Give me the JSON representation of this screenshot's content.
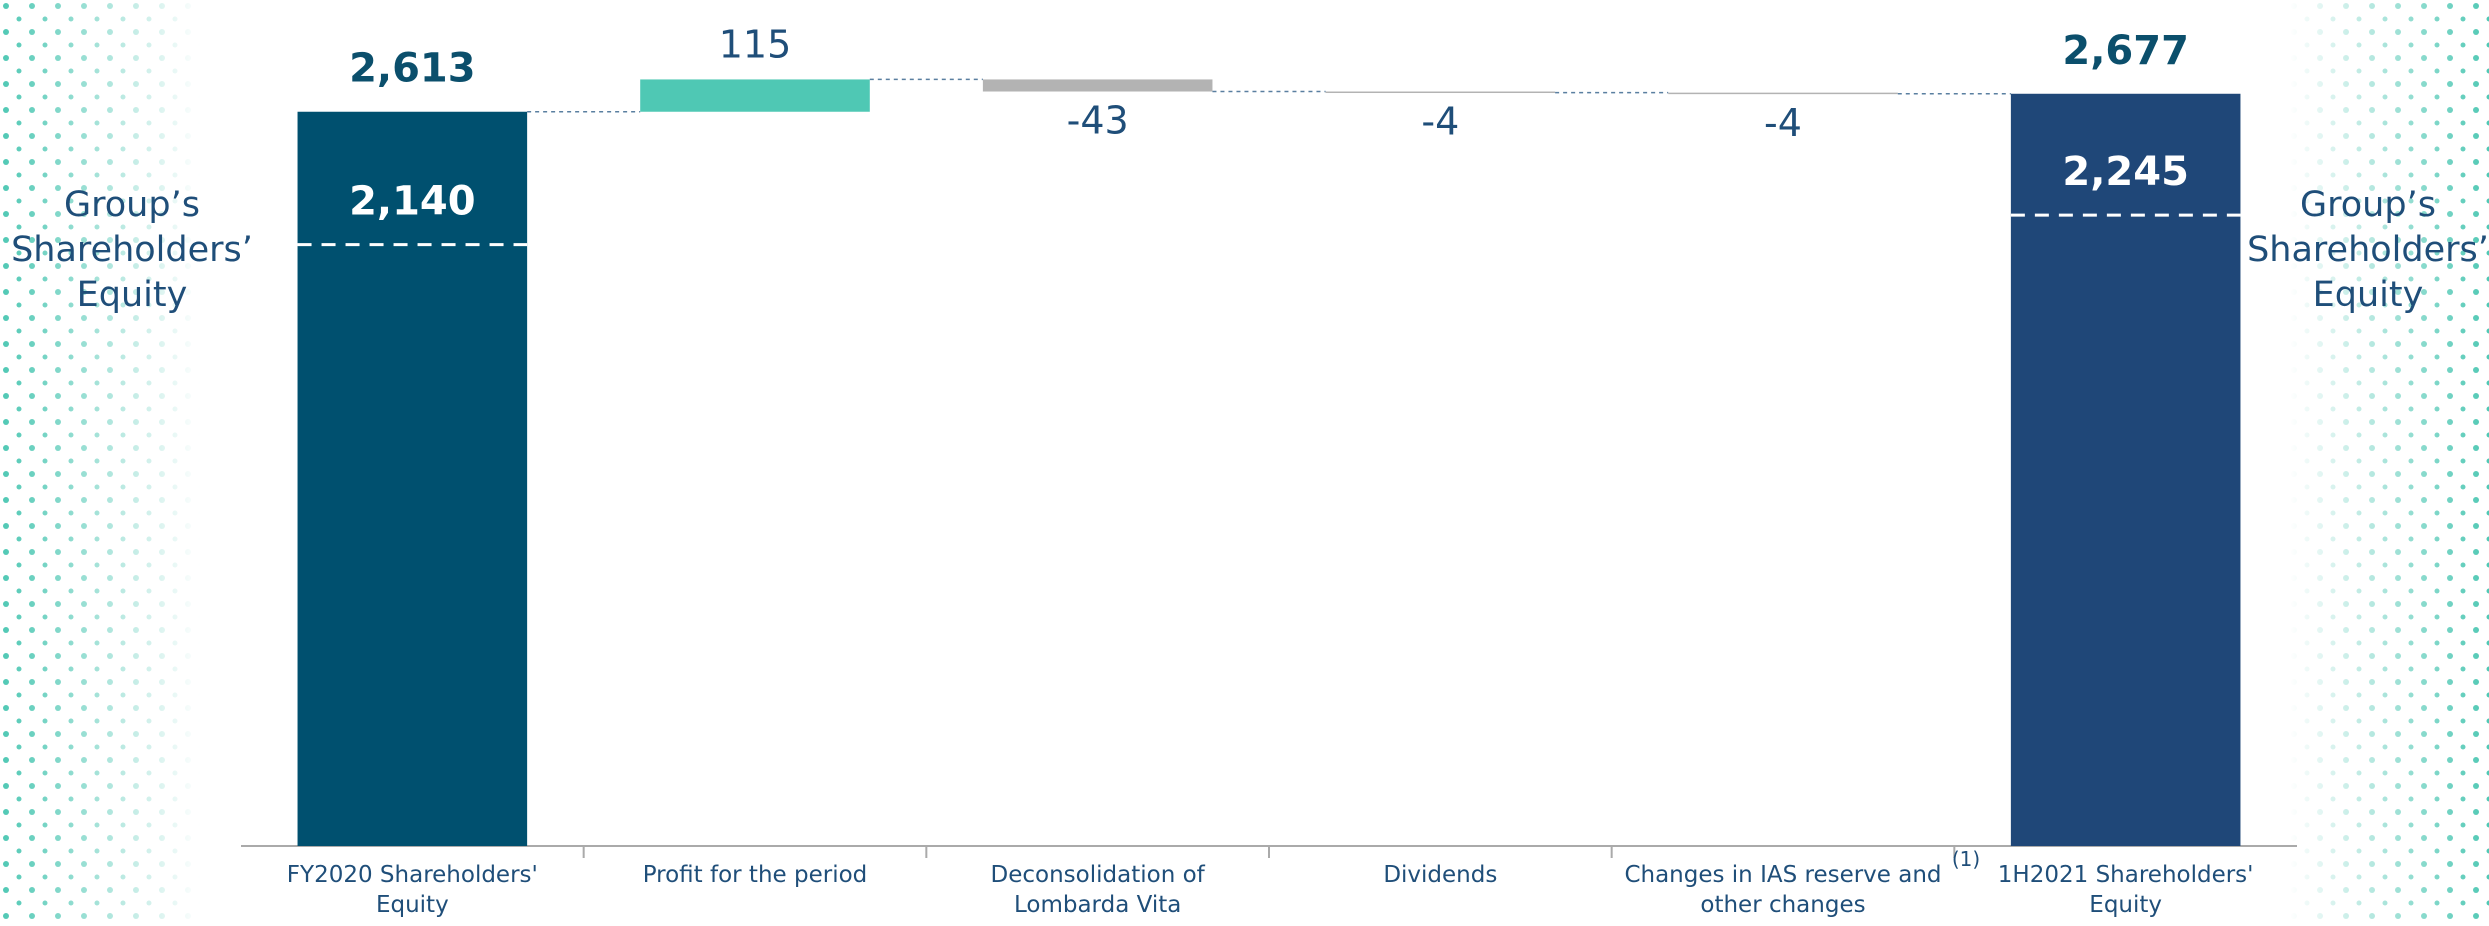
{
  "chart_data": {
    "type": "waterfall",
    "categories": [
      "FY2020 Shareholders' Equity",
      "Profit for the period",
      "Deconsolidation of Lombarda Vita",
      "Dividends",
      "Changes in IAS reserve and other changes",
      "1H2021 Shareholders' Equity"
    ],
    "values": [
      2613,
      115,
      -43,
      -4,
      -4,
      2677
    ],
    "value_labels": [
      "2,613",
      "115",
      "-43",
      "-4",
      "-4",
      "2,677"
    ],
    "is_total": [
      true,
      false,
      false,
      false,
      false,
      true
    ],
    "colors": [
      "#00506f",
      "#4fc8b4",
      "#b3b3b3",
      "#b3b3b3",
      "#b3b3b3",
      "#1f4778"
    ],
    "equity_values": [
      2140,
      null,
      null,
      null,
      null,
      2245
    ],
    "equity_value_labels": [
      "2,140",
      null,
      null,
      null,
      null,
      "2,245"
    ],
    "side_label": "Group’s Shareholders’ Equity",
    "footnote": "(1)",
    "ylim": [
      0,
      3000
    ]
  }
}
